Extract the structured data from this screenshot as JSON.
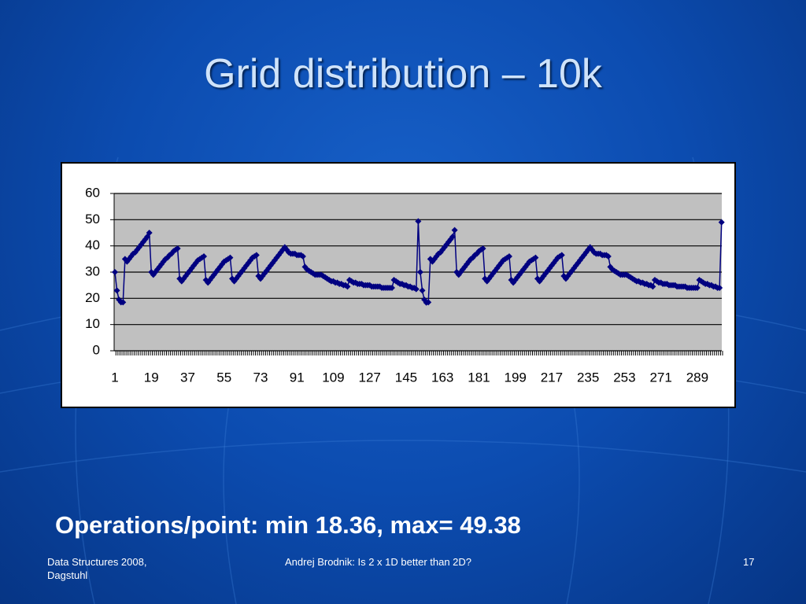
{
  "title": "Grid distribution – 10k",
  "chart_data": {
    "type": "line",
    "categories": [
      1,
      null,
      null,
      null,
      null,
      null,
      null,
      null,
      null,
      null,
      null,
      null,
      null,
      null,
      null,
      null,
      null,
      null,
      19,
      null,
      null,
      null,
      null,
      null,
      null,
      null,
      null,
      null,
      null,
      null,
      null,
      null,
      null,
      null,
      null,
      null,
      37,
      null,
      null,
      null,
      null,
      null,
      null,
      null,
      null,
      null,
      null,
      null,
      null,
      null,
      null,
      null,
      null,
      null,
      55,
      null,
      null,
      null,
      null,
      null,
      null,
      null,
      null,
      null,
      null,
      null,
      null,
      null,
      null,
      null,
      null,
      null,
      73,
      null,
      null,
      null,
      null,
      null,
      null,
      null,
      null,
      null,
      null,
      null,
      null,
      null,
      null,
      null,
      null,
      null,
      91,
      null,
      null,
      null,
      null,
      null,
      null,
      null,
      null,
      null,
      null,
      null,
      null,
      null,
      null,
      null,
      null,
      null,
      109,
      null,
      null,
      null,
      null,
      null,
      null,
      null,
      null,
      null,
      null,
      null,
      null,
      null,
      null,
      null,
      null,
      null,
      127,
      null,
      null,
      null,
      null,
      null,
      null,
      null,
      null,
      null,
      null,
      null,
      null,
      null,
      null,
      null,
      null,
      null,
      145,
      null,
      null,
      null,
      null,
      null,
      null,
      null,
      null,
      null,
      null,
      null,
      null,
      null,
      null,
      null,
      null,
      null,
      163,
      null,
      null,
      null,
      null,
      null,
      null,
      null,
      null,
      null,
      null,
      null,
      null,
      null,
      null,
      null,
      null,
      null,
      181,
      null,
      null,
      null,
      null,
      null,
      null,
      null,
      null,
      null,
      null,
      null,
      null,
      null,
      null,
      null,
      null,
      null,
      199,
      null,
      null,
      null,
      null,
      null,
      null,
      null,
      null,
      null,
      null,
      null,
      null,
      null,
      null,
      null,
      null,
      null,
      217,
      null,
      null,
      null,
      null,
      null,
      null,
      null,
      null,
      null,
      null,
      null,
      null,
      null,
      null,
      null,
      null,
      null,
      235,
      null,
      null,
      null,
      null,
      null,
      null,
      null,
      null,
      null,
      null,
      null,
      null,
      null,
      null,
      null,
      null,
      null,
      253,
      null,
      null,
      null,
      null,
      null,
      null,
      null,
      null,
      null,
      null,
      null,
      null,
      null,
      null,
      null,
      null,
      null,
      271,
      null,
      null,
      null,
      null,
      null,
      null,
      null,
      null,
      null,
      null,
      null,
      null,
      null,
      null,
      null,
      null,
      null,
      289,
      null,
      null,
      null,
      null,
      null,
      null,
      null,
      null,
      null,
      null,
      null,
      null
    ],
    "series": [
      {
        "color": "#000080",
        "values": [
          30,
          23,
          19.5,
          18.5,
          18.5,
          35,
          34,
          35,
          36,
          37,
          37.5,
          38.5,
          39.5,
          40.5,
          41.5,
          42.5,
          43.5,
          45,
          30,
          29,
          30,
          31,
          32,
          33,
          34,
          35,
          35.5,
          36.5,
          37,
          38,
          38.5,
          39,
          27.5,
          26.5,
          27.5,
          28.5,
          29.5,
          30.5,
          31.5,
          32.5,
          33.5,
          34.5,
          35,
          35.5,
          36,
          27,
          26,
          27,
          28,
          29,
          30,
          31,
          32,
          33,
          34,
          34.5,
          35,
          35.5,
          27.5,
          26.5,
          27.5,
          28.5,
          29.5,
          30.5,
          31.5,
          32.5,
          33.5,
          34.5,
          35.5,
          36,
          36.5,
          28.5,
          27.5,
          28.5,
          29.5,
          30.5,
          31.5,
          32.5,
          33.5,
          34.5,
          35.5,
          36.5,
          37.5,
          38.5,
          39.5,
          38.5,
          37.5,
          37,
          37,
          37,
          36.5,
          36.5,
          36.5,
          36,
          32,
          31,
          30.5,
          30,
          29.5,
          29,
          29,
          29,
          29,
          28.5,
          28,
          27.5,
          27,
          26.5,
          26.5,
          26,
          26,
          25.5,
          25.5,
          25,
          25,
          24.5,
          27,
          26.5,
          26,
          26,
          25.5,
          25.5,
          25.5,
          25,
          25,
          25,
          25,
          24.5,
          24.5,
          24.5,
          24.5,
          24.5,
          24,
          24,
          24,
          24,
          24,
          24,
          27,
          26.5,
          26,
          25.5,
          25.5,
          25,
          25,
          24.5,
          24.5,
          24,
          24,
          23.5,
          49.38,
          30,
          23,
          19.5,
          18.36,
          18.5,
          35,
          34,
          35,
          36,
          37,
          37.5,
          38.5,
          39.5,
          40.5,
          41.5,
          42.5,
          43.5,
          46,
          30,
          29,
          30,
          31,
          32,
          33,
          34,
          35,
          35.5,
          36.5,
          37,
          38,
          38.5,
          39,
          27.5,
          26.5,
          27.5,
          28.5,
          29.5,
          30.5,
          31.5,
          32.5,
          33.5,
          34.5,
          35,
          35.5,
          36,
          27,
          26,
          27,
          28,
          29,
          30,
          31,
          32,
          33,
          34,
          34.5,
          35,
          35.5,
          27.5,
          26.5,
          27.5,
          28.5,
          29.5,
          30.5,
          31.5,
          32.5,
          33.5,
          34.5,
          35.5,
          36,
          36.5,
          28.5,
          27.5,
          28.5,
          29.5,
          30.5,
          31.5,
          32.5,
          33.5,
          34.5,
          35.5,
          36.5,
          37.5,
          38.5,
          39.5,
          38.5,
          37.5,
          37,
          37,
          37,
          36.5,
          36.5,
          36.5,
          36,
          32,
          31,
          30.5,
          30,
          29.5,
          29,
          29,
          29,
          29,
          28.5,
          28,
          27.5,
          27,
          26.5,
          26.5,
          26,
          26,
          25.5,
          25.5,
          25,
          25,
          24.5,
          27,
          26.5,
          26,
          26,
          25.5,
          25.5,
          25.5,
          25,
          25,
          25,
          25,
          24.5,
          24.5,
          24.5,
          24.5,
          24.5,
          24,
          24,
          24,
          24,
          24,
          24,
          27,
          26.5,
          26,
          25.5,
          25.5,
          25,
          25,
          24.5,
          24.5,
          24,
          24,
          49
        ]
      }
    ],
    "ylim": [
      0,
      60
    ],
    "yticks": [
      0,
      10,
      20,
      30,
      40,
      50,
      60
    ],
    "grid": true,
    "plot_background": "#c0c0c0"
  },
  "caption": "Operations/point: min 18.36, max= 49.38",
  "footer": {
    "left": [
      "Data Structures 2008,",
      "Dagstuhl"
    ],
    "center": "Andrej Brodnik: Is 2 x 1D better than 2D?",
    "right": "17"
  }
}
